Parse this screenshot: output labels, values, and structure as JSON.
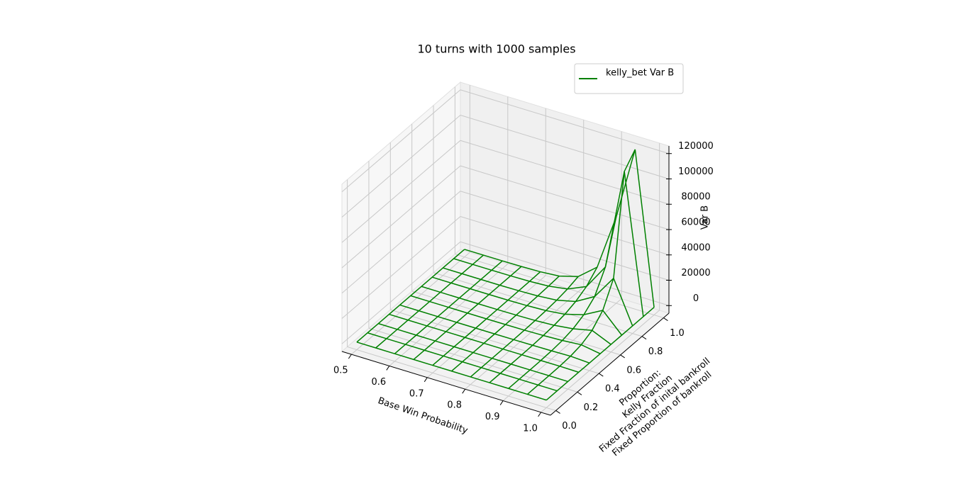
{
  "chart_data": {
    "type": "wireframe3d",
    "title": "10 turns with 1000 samples",
    "xlabel": "Base Win Probability",
    "ylabel": [
      "Proportion:",
      "Kelly Fraction",
      "Fixed Fraction of inital bankroll",
      "Fixed Proportion of bankroll"
    ],
    "zlabel": "Var B",
    "color": "#008000",
    "legend": "upper right",
    "series": [
      {
        "name": "kelly_bet Var B",
        "color": "#008000"
      }
    ],
    "x": [
      0.5,
      0.55,
      0.6,
      0.65,
      0.7,
      0.75,
      0.8,
      0.85,
      0.9,
      0.95,
      1.0
    ],
    "y": [
      0,
      0.1,
      0.2,
      0.3,
      0.4,
      0.5,
      0.6,
      0.7,
      0.8,
      0.9,
      1.0
    ],
    "z": [
      [
        0,
        0,
        0,
        0,
        0,
        0,
        0,
        0,
        0,
        0,
        0
      ],
      [
        0,
        0,
        0,
        1,
        1,
        2,
        3,
        4,
        6,
        8,
        10
      ],
      [
        0,
        0,
        1,
        2,
        5,
        8,
        13,
        20,
        28,
        38,
        50
      ],
      [
        0,
        0,
        2,
        6,
        12,
        22,
        38,
        60,
        90,
        130,
        180
      ],
      [
        0,
        1,
        4,
        12,
        30,
        60,
        100,
        170,
        270,
        400,
        600
      ],
      [
        0,
        1,
        7,
        25,
        65,
        140,
        260,
        450,
        750,
        1200,
        1800
      ],
      [
        0,
        2,
        12,
        45,
        130,
        300,
        600,
        1100,
        2000,
        3500,
        6000
      ],
      [
        0,
        3,
        20,
        80,
        250,
        650,
        1400,
        2800,
        5500,
        10000,
        18000
      ],
      [
        0,
        4,
        30,
        130,
        450,
        1300,
        3200,
        7000,
        14000,
        30000,
        62000
      ],
      [
        0,
        5,
        40,
        200,
        800,
        2500,
        6500,
        15000,
        33000,
        110000,
        120000
      ],
      [
        0,
        0,
        0,
        0,
        0,
        0,
        0,
        0,
        0,
        0,
        0
      ]
    ],
    "xlim": [
      0.475,
      1.025
    ],
    "ylim": [
      -0.05,
      1.05
    ],
    "zlim": [
      -6000,
      126000
    ],
    "xticks": [
      0.5,
      0.6,
      0.7,
      0.8,
      0.9,
      {
        "value": 1,
        "label": "1.0"
      }
    ],
    "yticks": [
      {
        "value": 0,
        "label": "0.0"
      },
      0.2,
      0.4,
      0.6,
      0.8,
      {
        "value": 1,
        "label": "1.0"
      }
    ],
    "zticks": [
      0,
      20000,
      40000,
      60000,
      80000,
      100000,
      120000
    ],
    "grid": true
  }
}
